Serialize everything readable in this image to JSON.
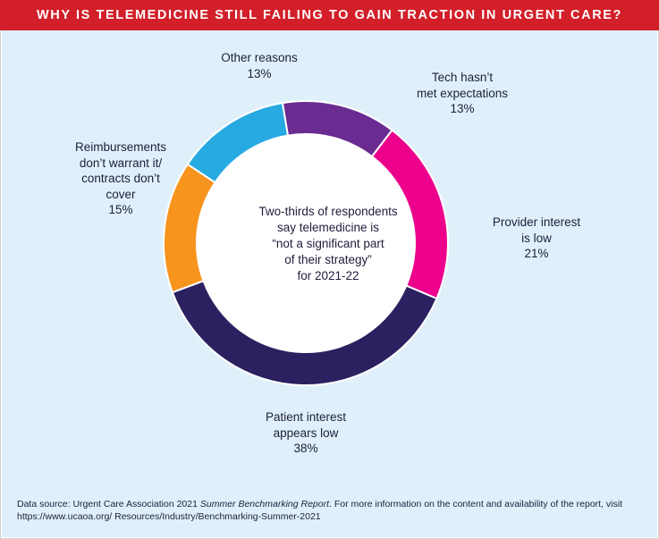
{
  "header": {
    "title": "WHY IS TELEMEDICINE STILL FAILING TO GAIN TRACTION IN URGENT CARE?"
  },
  "center_text": "Two-thirds of respondents\nsay telemedicine is\n“not a significant part\nof their strategy”\nfor 2021-22",
  "footer": {
    "prefix": "Data source: Urgent Care Association 2021 ",
    "report_title": "Summer Benchmarking Report",
    "suffix": ". For more information on the content and availability of the report, visit https://www.ucaoa.org/ Resources/Industry/Benchmarking-Summer-2021"
  },
  "colors": {
    "header_bg": "#d21f29",
    "panel_bg": "#dff0fb"
  },
  "chart_data": {
    "type": "pie",
    "variant": "donut",
    "title": "WHY IS TELEMEDICINE STILL FAILING TO GAIN TRACTION IN URGENT CARE?",
    "slices": [
      {
        "label": "Tech hasn’t\nmet expectations",
        "value": 13,
        "display": "13%",
        "color": "#6a2c91"
      },
      {
        "label": "Provider interest\nis low",
        "value": 21,
        "display": "21%",
        "color": "#ec008c"
      },
      {
        "label": "Patient interest\nappears low",
        "value": 38,
        "display": "38%",
        "color": "#2b2161"
      },
      {
        "label": "Reimbursements\ndon’t warrant it/\ncontracts don’t\ncover",
        "value": 15,
        "display": "15%",
        "color": "#f7941d"
      },
      {
        "label": "Other reasons",
        "value": 13,
        "display": "13%",
        "color": "#27aae1"
      }
    ]
  }
}
